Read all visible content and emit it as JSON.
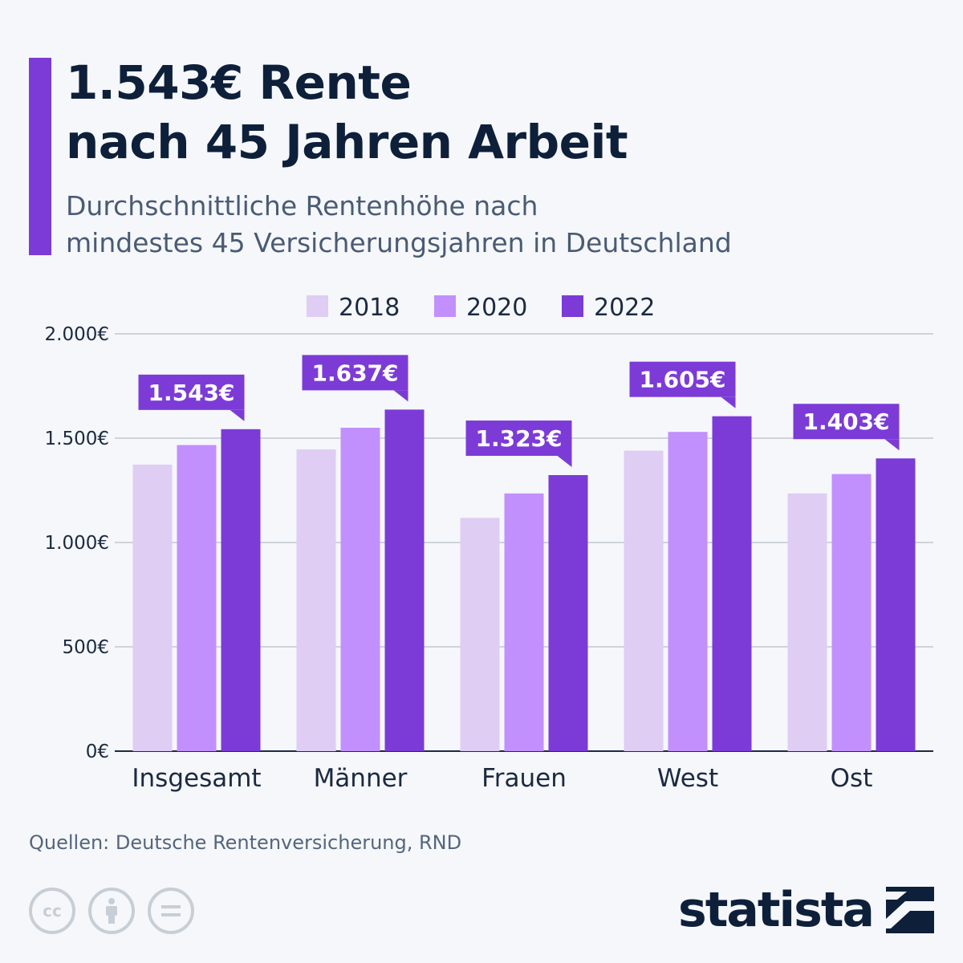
{
  "header": {
    "title_line1": "1.543€ Rente",
    "title_line2": "nach 45 Jahren Arbeit",
    "subtitle_line1": "Durchschnittliche Rentenhöhe nach",
    "subtitle_line2": "mindestes 45 Versicherungsjahren in Deutschland"
  },
  "colors": {
    "accent": "#7c3bd6",
    "series": [
      "#dfcdf4",
      "#c290fc",
      "#7c3bd6"
    ],
    "text_dark": "#0e1f3a",
    "grid": "#b8bec8"
  },
  "chart_data": {
    "type": "bar",
    "categories": [
      "Insgesamt",
      "Männer",
      "Frauen",
      "West",
      "Ost"
    ],
    "series": [
      {
        "name": "2018",
        "values": [
          1373,
          1446,
          1118,
          1440,
          1235
        ]
      },
      {
        "name": "2020",
        "values": [
          1467,
          1550,
          1235,
          1530,
          1328
        ]
      },
      {
        "name": "2022",
        "values": [
          1543,
          1637,
          1323,
          1605,
          1403
        ]
      }
    ],
    "data_labels": [
      "1.543€",
      "1.637€",
      "1.323€",
      "1.605€",
      "1.403€"
    ],
    "ylim": [
      0,
      2000
    ],
    "yticks": [
      0,
      500,
      1000,
      1500,
      2000
    ],
    "ytick_labels": [
      "0€",
      "500€",
      "1.000€",
      "1.500€",
      "2.000€"
    ],
    "legend_position": "top-center",
    "grid": true
  },
  "footer": {
    "source": "Quellen: Deutsche Rentenversicherung, RND",
    "brand": "statista",
    "license_icons": [
      "cc-icon",
      "attribution-icon",
      "no-derivatives-icon"
    ]
  }
}
